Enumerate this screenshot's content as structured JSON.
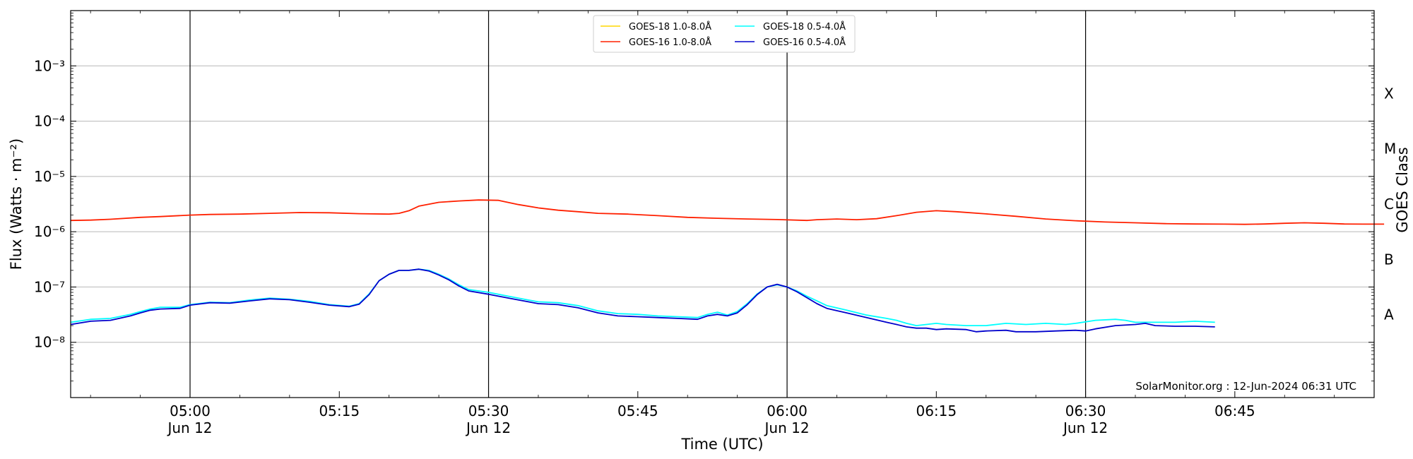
{
  "chart_data": {
    "type": "line",
    "xlabel": "Time (UTC)",
    "ylabel": "Flux (Watts · m⁻²)",
    "right_label": "GOES Class",
    "credit": "SolarMonitor.org : 12-Jun-2024 06:31 UTC",
    "xlim": [
      "04:48",
      "06:59"
    ],
    "ylim": [
      1e-09,
      0.01
    ],
    "yscale": "log",
    "grid": "horizontal",
    "legend_position": "top-center",
    "x_ticks": [
      {
        "time": "05:00",
        "label": "05:00",
        "sublabel": "Jun 12",
        "vline": true
      },
      {
        "time": "05:15",
        "label": "05:15",
        "sublabel": "",
        "vline": false
      },
      {
        "time": "05:30",
        "label": "05:30",
        "sublabel": "Jun 12",
        "vline": true
      },
      {
        "time": "05:45",
        "label": "05:45",
        "sublabel": "",
        "vline": false
      },
      {
        "time": "06:00",
        "label": "06:00",
        "sublabel": "Jun 12",
        "vline": true
      },
      {
        "time": "06:15",
        "label": "06:15",
        "sublabel": "",
        "vline": false
      },
      {
        "time": "06:30",
        "label": "06:30",
        "sublabel": "Jun 12",
        "vline": true
      },
      {
        "time": "06:45",
        "label": "06:45",
        "sublabel": "",
        "vline": false
      }
    ],
    "y_ticks": [
      {
        "exp": -8,
        "label": "10⁻⁸"
      },
      {
        "exp": -7,
        "label": "10⁻⁷"
      },
      {
        "exp": -6,
        "label": "10⁻⁶"
      },
      {
        "exp": -5,
        "label": "10⁻⁵"
      },
      {
        "exp": -4,
        "label": "10⁻⁴"
      },
      {
        "exp": -3,
        "label": "10⁻³"
      }
    ],
    "goes_classes": [
      {
        "label": "A",
        "exp": -7.5
      },
      {
        "label": "B",
        "exp": -6.5
      },
      {
        "label": "C",
        "exp": -5.5
      },
      {
        "label": "M",
        "exp": -4.5
      },
      {
        "label": "X",
        "exp": -3.5
      }
    ],
    "series": [
      {
        "name": "GOES-18 1.0-8.0Å",
        "color": "#FFD700",
        "points": []
      },
      {
        "name": "GOES-18 0.5-4.0Å",
        "color": "#00FFFF",
        "points": [
          [
            "04:48",
            2.3e-08
          ],
          [
            "04:50",
            2.6e-08
          ],
          [
            "04:52",
            2.7e-08
          ],
          [
            "04:54",
            3.2e-08
          ],
          [
            "04:55",
            3.6e-08
          ],
          [
            "04:56",
            4e-08
          ],
          [
            "04:57",
            4.3e-08
          ],
          [
            "04:59",
            4.3e-08
          ],
          [
            "05:00",
            4.8e-08
          ],
          [
            "05:02",
            5.3e-08
          ],
          [
            "05:04",
            5.2e-08
          ],
          [
            "05:06",
            5.8e-08
          ],
          [
            "05:08",
            6.3e-08
          ],
          [
            "05:10",
            6e-08
          ],
          [
            "05:12",
            5.5e-08
          ],
          [
            "05:14",
            4.8e-08
          ],
          [
            "05:16",
            4.5e-08
          ],
          [
            "05:17",
            5e-08
          ],
          [
            "05:18",
            7.5e-08
          ],
          [
            "05:19",
            1.3e-07
          ],
          [
            "05:20",
            1.7e-07
          ],
          [
            "05:21",
            2e-07
          ],
          [
            "05:22",
            2e-07
          ],
          [
            "05:23",
            2.1e-07
          ],
          [
            "05:24",
            2e-07
          ],
          [
            "05:25",
            1.7e-07
          ],
          [
            "05:26",
            1.4e-07
          ],
          [
            "05:27",
            1.1e-07
          ],
          [
            "05:28",
            9e-08
          ],
          [
            "05:30",
            8e-08
          ],
          [
            "05:32",
            6.8e-08
          ],
          [
            "05:34",
            5.8e-08
          ],
          [
            "05:35",
            5.4e-08
          ],
          [
            "05:37",
            5.2e-08
          ],
          [
            "05:39",
            4.6e-08
          ],
          [
            "05:41",
            3.7e-08
          ],
          [
            "05:43",
            3.3e-08
          ],
          [
            "05:45",
            3.2e-08
          ],
          [
            "05:47",
            3e-08
          ],
          [
            "05:49",
            2.9e-08
          ],
          [
            "05:51",
            2.8e-08
          ],
          [
            "05:52",
            3.2e-08
          ],
          [
            "05:53",
            3.5e-08
          ],
          [
            "05:54",
            3.1e-08
          ],
          [
            "05:55",
            3.6e-08
          ],
          [
            "05:56",
            5e-08
          ],
          [
            "05:57",
            7.5e-08
          ],
          [
            "05:58",
            1e-07
          ],
          [
            "05:59",
            1.1e-07
          ],
          [
            "06:00",
            1e-07
          ],
          [
            "06:01",
            8.5e-08
          ],
          [
            "06:02",
            6.8e-08
          ],
          [
            "06:03",
            5.6e-08
          ],
          [
            "06:04",
            4.6e-08
          ],
          [
            "06:06",
            3.8e-08
          ],
          [
            "06:08",
            3.1e-08
          ],
          [
            "06:10",
            2.7e-08
          ],
          [
            "06:11",
            2.5e-08
          ],
          [
            "06:12",
            2.2e-08
          ],
          [
            "06:13",
            2e-08
          ],
          [
            "06:14",
            2.1e-08
          ],
          [
            "06:15",
            2.2e-08
          ],
          [
            "06:16",
            2.1e-08
          ],
          [
            "06:18",
            2e-08
          ],
          [
            "06:20",
            2e-08
          ],
          [
            "06:22",
            2.2e-08
          ],
          [
            "06:24",
            2.1e-08
          ],
          [
            "06:26",
            2.2e-08
          ],
          [
            "06:28",
            2.1e-08
          ],
          [
            "06:29",
            2.2e-08
          ],
          [
            "06:31",
            2.5e-08
          ],
          [
            "06:33",
            2.6e-08
          ],
          [
            "06:34",
            2.5e-08
          ],
          [
            "06:35",
            2.3e-08
          ],
          [
            "06:37",
            2.3e-08
          ],
          [
            "06:39",
            2.3e-08
          ],
          [
            "06:41",
            2.4e-08
          ],
          [
            "06:43",
            2.3e-08
          ]
        ]
      },
      {
        "name": "GOES-16 1.0-8.0Å",
        "color": "#FF2000",
        "points": [
          [
            "04:48",
            1.6e-06
          ],
          [
            "04:50",
            1.62e-06
          ],
          [
            "04:52",
            1.68e-06
          ],
          [
            "04:55",
            1.82e-06
          ],
          [
            "04:57",
            1.88e-06
          ],
          [
            "05:00",
            2e-06
          ],
          [
            "05:02",
            2.05e-06
          ],
          [
            "05:05",
            2.08e-06
          ],
          [
            "05:08",
            2.15e-06
          ],
          [
            "05:11",
            2.22e-06
          ],
          [
            "05:14",
            2.2e-06
          ],
          [
            "05:17",
            2.12e-06
          ],
          [
            "05:20",
            2.08e-06
          ],
          [
            "05:21",
            2.15e-06
          ],
          [
            "05:22",
            2.4e-06
          ],
          [
            "05:23",
            2.9e-06
          ],
          [
            "05:25",
            3.4e-06
          ],
          [
            "05:27",
            3.6e-06
          ],
          [
            "05:29",
            3.75e-06
          ],
          [
            "05:31",
            3.7e-06
          ],
          [
            "05:33",
            3.1e-06
          ],
          [
            "05:35",
            2.7e-06
          ],
          [
            "05:37",
            2.45e-06
          ],
          [
            "05:39",
            2.3e-06
          ],
          [
            "05:41",
            2.15e-06
          ],
          [
            "05:44",
            2.08e-06
          ],
          [
            "05:47",
            1.95e-06
          ],
          [
            "05:50",
            1.82e-06
          ],
          [
            "05:53",
            1.75e-06
          ],
          [
            "05:56",
            1.7e-06
          ],
          [
            "05:59",
            1.66e-06
          ],
          [
            "06:02",
            1.6e-06
          ],
          [
            "06:03",
            1.65e-06
          ],
          [
            "06:05",
            1.7e-06
          ],
          [
            "06:07",
            1.65e-06
          ],
          [
            "06:09",
            1.72e-06
          ],
          [
            "06:11",
            1.95e-06
          ],
          [
            "06:13",
            2.25e-06
          ],
          [
            "06:15",
            2.4e-06
          ],
          [
            "06:17",
            2.3e-06
          ],
          [
            "06:20",
            2.1e-06
          ],
          [
            "06:23",
            1.9e-06
          ],
          [
            "06:26",
            1.7e-06
          ],
          [
            "06:29",
            1.58e-06
          ],
          [
            "06:32",
            1.5e-06
          ],
          [
            "06:35",
            1.45e-06
          ],
          [
            "06:38",
            1.4e-06
          ],
          [
            "06:41",
            1.38e-06
          ],
          [
            "06:44",
            1.37e-06
          ],
          [
            "06:46",
            1.36e-06
          ],
          [
            "06:48",
            1.38e-06
          ],
          [
            "06:50",
            1.42e-06
          ],
          [
            "06:52",
            1.45e-06
          ],
          [
            "06:54",
            1.42e-06
          ],
          [
            "06:56",
            1.38e-06
          ],
          [
            "06:58",
            1.37e-06
          ],
          [
            "07:00",
            1.37e-06
          ]
        ]
      },
      {
        "name": "GOES-16 0.5-4.0Å",
        "color": "#0000CC",
        "points": [
          [
            "04:48",
            2.1e-08
          ],
          [
            "04:50",
            2.4e-08
          ],
          [
            "04:52",
            2.5e-08
          ],
          [
            "04:54",
            3e-08
          ],
          [
            "04:55",
            3.4e-08
          ],
          [
            "04:56",
            3.8e-08
          ],
          [
            "04:57",
            4e-08
          ],
          [
            "04:59",
            4.1e-08
          ],
          [
            "05:00",
            4.7e-08
          ],
          [
            "05:02",
            5.2e-08
          ],
          [
            "05:04",
            5.1e-08
          ],
          [
            "05:06",
            5.6e-08
          ],
          [
            "05:08",
            6.1e-08
          ],
          [
            "05:10",
            5.9e-08
          ],
          [
            "05:12",
            5.3e-08
          ],
          [
            "05:14",
            4.7e-08
          ],
          [
            "05:16",
            4.4e-08
          ],
          [
            "05:17",
            4.9e-08
          ],
          [
            "05:18",
            7.3e-08
          ],
          [
            "05:19",
            1.3e-07
          ],
          [
            "05:20",
            1.7e-07
          ],
          [
            "05:21",
            2e-07
          ],
          [
            "05:22",
            2e-07
          ],
          [
            "05:23",
            2.1e-07
          ],
          [
            "05:24",
            1.95e-07
          ],
          [
            "05:25",
            1.65e-07
          ],
          [
            "05:26",
            1.35e-07
          ],
          [
            "05:27",
            1.05e-07
          ],
          [
            "05:28",
            8.5e-08
          ],
          [
            "05:30",
            7.4e-08
          ],
          [
            "05:32",
            6.3e-08
          ],
          [
            "05:34",
            5.4e-08
          ],
          [
            "05:35",
            5e-08
          ],
          [
            "05:37",
            4.8e-08
          ],
          [
            "05:39",
            4.2e-08
          ],
          [
            "05:41",
            3.4e-08
          ],
          [
            "05:43",
            3e-08
          ],
          [
            "05:45",
            2.9e-08
          ],
          [
            "05:47",
            2.8e-08
          ],
          [
            "05:49",
            2.7e-08
          ],
          [
            "05:51",
            2.6e-08
          ],
          [
            "05:52",
            3e-08
          ],
          [
            "05:53",
            3.2e-08
          ],
          [
            "05:54",
            3e-08
          ],
          [
            "05:55",
            3.4e-08
          ],
          [
            "05:56",
            4.8e-08
          ],
          [
            "05:57",
            7.3e-08
          ],
          [
            "05:58",
            1e-07
          ],
          [
            "05:59",
            1.12e-07
          ],
          [
            "06:00",
            1e-07
          ],
          [
            "06:01",
            8.2e-08
          ],
          [
            "06:02",
            6.4e-08
          ],
          [
            "06:03",
            5e-08
          ],
          [
            "06:04",
            4.1e-08
          ],
          [
            "06:06",
            3.4e-08
          ],
          [
            "06:08",
            2.8e-08
          ],
          [
            "06:10",
            2.3e-08
          ],
          [
            "06:11",
            2.1e-08
          ],
          [
            "06:12",
            1.9e-08
          ],
          [
            "06:13",
            1.8e-08
          ],
          [
            "06:14",
            1.8e-08
          ],
          [
            "06:15",
            1.7e-08
          ],
          [
            "06:16",
            1.75e-08
          ],
          [
            "06:18",
            1.7e-08
          ],
          [
            "06:19",
            1.55e-08
          ],
          [
            "06:20",
            1.6e-08
          ],
          [
            "06:22",
            1.65e-08
          ],
          [
            "06:23",
            1.55e-08
          ],
          [
            "06:25",
            1.55e-08
          ],
          [
            "06:27",
            1.6e-08
          ],
          [
            "06:29",
            1.65e-08
          ],
          [
            "06:30",
            1.6e-08
          ],
          [
            "06:31",
            1.75e-08
          ],
          [
            "06:33",
            2e-08
          ],
          [
            "06:35",
            2.1e-08
          ],
          [
            "06:36",
            2.2e-08
          ],
          [
            "06:37",
            2e-08
          ],
          [
            "06:39",
            1.95e-08
          ],
          [
            "06:41",
            1.95e-08
          ],
          [
            "06:43",
            1.9e-08
          ]
        ]
      }
    ]
  }
}
